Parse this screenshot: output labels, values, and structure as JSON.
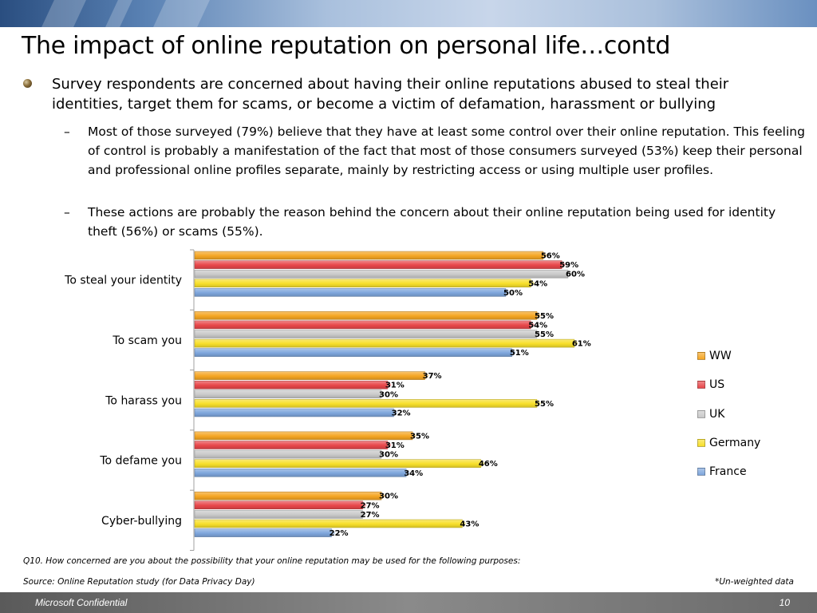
{
  "slide": {
    "title": "The impact of online reputation on personal life…contd",
    "bullet": "Survey respondents are concerned about having their online reputations abused to steal their identities, target them for scams, or become a victim of defamation, harassment  or bullying",
    "sub_bullets": [
      "Most of those surveyed (79%) believe that they have at least some control over their online reputation. This feeling of control is probably a manifestation of the fact that most of those consumers surveyed (53%) keep their personal and professional online profiles separate, mainly by restricting access or using multiple user profiles.",
      "These actions are probably the reason behind the concern about their online reputation being used for identity theft (56%) or scams (55%)."
    ],
    "dash": "–",
    "question": "Q10. How concerned are you about the possibility that your online reputation may be used for the following purposes:",
    "source": "Source: Online Reputation study (for Data Privacy Day)",
    "note": "*Un-weighted data",
    "footer_left": "Microsoft Confidential",
    "footer_right": "10"
  },
  "chart_data": {
    "type": "bar",
    "orientation": "horizontal",
    "categories": [
      "To steal your identity",
      "To scam you",
      "To harass you",
      "To defame you",
      "Cyber-bullying"
    ],
    "series": [
      {
        "name": "WW",
        "color": "#f5a623",
        "values": [
          56,
          55,
          37,
          35,
          30
        ]
      },
      {
        "name": "US",
        "color": "#e8474a",
        "values": [
          59,
          54,
          31,
          31,
          27
        ]
      },
      {
        "name": "UK",
        "color": "#c9c9c9",
        "values": [
          60,
          55,
          30,
          30,
          27
        ]
      },
      {
        "name": "Germany",
        "color": "#f7df2a",
        "values": [
          54,
          61,
          55,
          46,
          43
        ]
      },
      {
        "name": "France",
        "color": "#7ea6dc",
        "values": [
          50,
          51,
          32,
          34,
          22
        ]
      }
    ],
    "value_suffix": "%",
    "xlim": [
      0,
      100
    ],
    "legend_position": "right",
    "grid": false
  }
}
